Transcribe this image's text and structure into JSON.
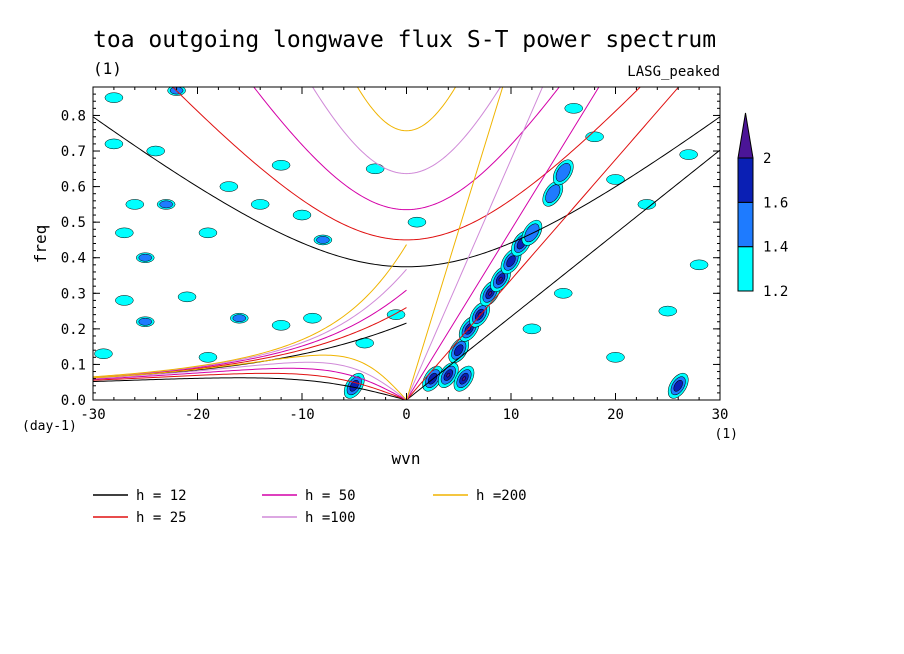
{
  "chart_data": {
    "type": "contour",
    "title": "toa outgoing longwave flux S-T power spectrum",
    "subtitle_left": "(1)",
    "subtitle_right": "LASG_peaked",
    "xlabel": "wvn",
    "ylabel": "freq",
    "x_unit_label": "(1)",
    "y_unit_label": "(day-1)",
    "xlim": [
      -30,
      30
    ],
    "ylim": [
      0,
      0.88
    ],
    "xticks": [
      -30,
      -20,
      -10,
      0,
      10,
      20,
      30
    ],
    "xtick_labels": [
      "-30",
      "-20",
      "-10",
      "0",
      "10",
      "20",
      "30"
    ],
    "yticks": [
      0.0,
      0.1,
      0.2,
      0.3,
      0.4,
      0.5,
      0.6,
      0.7,
      0.8
    ],
    "ytick_labels": [
      "0.0",
      "0.1",
      "0.2",
      "0.3",
      "0.4",
      "0.5",
      "0.6",
      "0.7",
      "0.8"
    ],
    "colorbar": {
      "levels": [
        1.2,
        1.4,
        1.6,
        2
      ],
      "labels": [
        "1.2",
        "1.4",
        "1.6",
        "2"
      ],
      "colors": [
        "#00ffff",
        "#1e7bff",
        "#0a1fb4",
        "#4b1597"
      ]
    },
    "dispersion_series": [
      {
        "name": "h = 12",
        "h": 12,
        "color": "#000000"
      },
      {
        "name": "h = 25",
        "h": 25,
        "color": "#e01010"
      },
      {
        "name": "h = 50",
        "h": 50,
        "color": "#d400a8"
      },
      {
        "name": "h =100",
        "h": 100,
        "color": "#d08ad8"
      },
      {
        "name": "h =200",
        "h": 200,
        "color": "#f0b400"
      }
    ],
    "kelvin_blobs": [
      {
        "x": 2.5,
        "y": 0.06,
        "level": 1.6
      },
      {
        "x": 4,
        "y": 0.07,
        "level": 2
      },
      {
        "x": 5.5,
        "y": 0.06,
        "level": 2
      },
      {
        "x": 5,
        "y": 0.14,
        "level": 1.6
      },
      {
        "x": 6,
        "y": 0.2,
        "level": 2
      },
      {
        "x": 7,
        "y": 0.24,
        "level": 2
      },
      {
        "x": 8,
        "y": 0.3,
        "level": 2
      },
      {
        "x": 9,
        "y": 0.34,
        "level": 2
      },
      {
        "x": 10,
        "y": 0.39,
        "level": 1.6
      },
      {
        "x": 11,
        "y": 0.44,
        "level": 1.6
      },
      {
        "x": 12,
        "y": 0.47,
        "level": 1.4
      },
      {
        "x": 14,
        "y": 0.58,
        "level": 1.4
      },
      {
        "x": 15,
        "y": 0.64,
        "level": 1.4
      },
      {
        "x": -5,
        "y": 0.04,
        "level": 1.6
      },
      {
        "x": 26,
        "y": 0.04,
        "level": 1.6
      }
    ],
    "scatter_blobs": [
      {
        "x": -26,
        "y": 0.55,
        "level": 1.2
      },
      {
        "x": -25,
        "y": 0.4,
        "level": 1.4
      },
      {
        "x": -23,
        "y": 0.55,
        "level": 1.4
      },
      {
        "x": -19,
        "y": 0.47,
        "level": 1.2
      },
      {
        "x": -17,
        "y": 0.6,
        "level": 1.2
      },
      {
        "x": -14,
        "y": 0.55,
        "level": 1.2
      },
      {
        "x": -10,
        "y": 0.52,
        "level": 1.2
      },
      {
        "x": -8,
        "y": 0.45,
        "level": 1.4
      },
      {
        "x": -27,
        "y": 0.28,
        "level": 1.2
      },
      {
        "x": -25,
        "y": 0.22,
        "level": 1.4
      },
      {
        "x": -21,
        "y": 0.29,
        "level": 1.2
      },
      {
        "x": -16,
        "y": 0.23,
        "level": 1.4
      },
      {
        "x": -12,
        "y": 0.21,
        "level": 1.2
      },
      {
        "x": -9,
        "y": 0.23,
        "level": 1.2
      },
      {
        "x": -28,
        "y": 0.72,
        "level": 1.2
      },
      {
        "x": -24,
        "y": 0.7,
        "level": 1.2
      },
      {
        "x": -29,
        "y": 0.13,
        "level": 1.2
      },
      {
        "x": -19,
        "y": 0.12,
        "level": 1.2
      },
      {
        "x": -28,
        "y": 0.85,
        "level": 1.2
      },
      {
        "x": -22,
        "y": 0.87,
        "level": 1.4
      },
      {
        "x": 18,
        "y": 0.74,
        "level": 1.2
      },
      {
        "x": 20,
        "y": 0.62,
        "level": 1.2
      },
      {
        "x": 23,
        "y": 0.55,
        "level": 1.2
      },
      {
        "x": 28,
        "y": 0.38,
        "level": 1.2
      },
      {
        "x": 25,
        "y": 0.25,
        "level": 1.2
      },
      {
        "x": 20,
        "y": 0.12,
        "level": 1.2
      },
      {
        "x": 27,
        "y": 0.69,
        "level": 1.2
      },
      {
        "x": 16,
        "y": 0.82,
        "level": 1.2
      },
      {
        "x": 12,
        "y": 0.2,
        "level": 1.2
      },
      {
        "x": 15,
        "y": 0.3,
        "level": 1.2
      },
      {
        "x": -4,
        "y": 0.16,
        "level": 1.2
      },
      {
        "x": -1,
        "y": 0.24,
        "level": 1.2
      },
      {
        "x": -27,
        "y": 0.47,
        "level": 1.2
      },
      {
        "x": -12,
        "y": 0.66,
        "level": 1.2
      },
      {
        "x": -3,
        "y": 0.65,
        "level": 1.2
      },
      {
        "x": 1,
        "y": 0.5,
        "level": 1.2
      }
    ]
  }
}
